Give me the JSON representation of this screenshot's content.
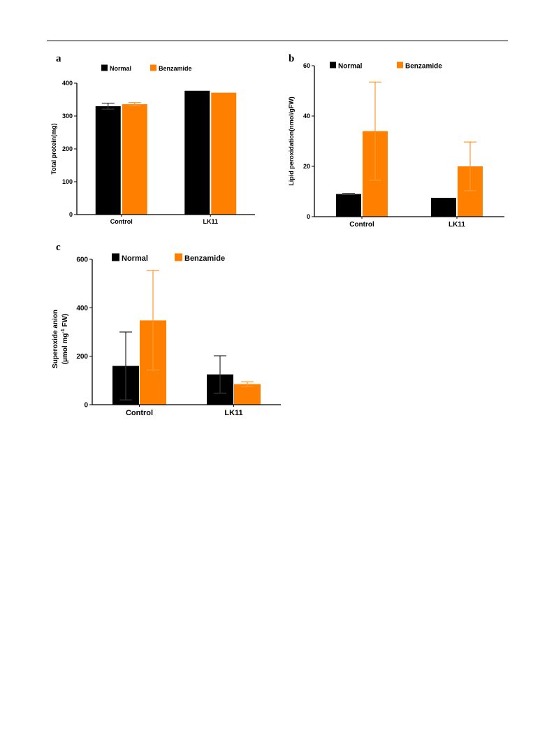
{
  "colors": {
    "normal": "#000000",
    "benzamide": "#ff8000"
  },
  "chart_data": [
    {
      "panel": "a",
      "type": "bar",
      "categories": [
        "Control",
        "LK11"
      ],
      "series": [
        {
          "name": "Normal",
          "values": [
            330,
            377
          ],
          "errors": [
            9,
            0
          ]
        },
        {
          "name": "Benzamide",
          "values": [
            336,
            371
          ],
          "errors": [
            5,
            0
          ]
        }
      ],
      "ylabel": "Total protein(mg)",
      "xlabel": "",
      "ylim": [
        0,
        400
      ],
      "yticks": [
        0,
        100,
        200,
        300,
        400
      ],
      "legend": "top"
    },
    {
      "panel": "b",
      "type": "bar",
      "categories": [
        "Control",
        "LK11"
      ],
      "series": [
        {
          "name": "Normal",
          "values": [
            9,
            7.5
          ],
          "errors": [
            0.2,
            0
          ]
        },
        {
          "name": "Benzamide",
          "values": [
            34,
            20
          ],
          "errors": [
            19.5,
            9.7
          ]
        }
      ],
      "ylabel": "Lipid peroxidation(nmol/gFW)",
      "xlabel": "",
      "ylim": [
        0,
        60
      ],
      "yticks": [
        0,
        20,
        40,
        60
      ],
      "legend": "top"
    },
    {
      "panel": "c",
      "type": "bar",
      "categories": [
        "Control",
        "LK11"
      ],
      "series": [
        {
          "name": "Normal",
          "values": [
            160,
            125
          ],
          "errors": [
            140,
            77
          ]
        },
        {
          "name": "Benzamide",
          "values": [
            348,
            85
          ],
          "errors": [
            205,
            10
          ]
        }
      ],
      "ylabel_line1": "Superoxide anion",
      "ylabel_line2_pre": "(µmol mg",
      "ylabel_line2_sup": "-1",
      "ylabel_line2_post": " FW)",
      "xlabel": "",
      "ylim": [
        0,
        600
      ],
      "yticks": [
        0,
        200,
        400,
        600
      ],
      "legend": "top"
    }
  ]
}
